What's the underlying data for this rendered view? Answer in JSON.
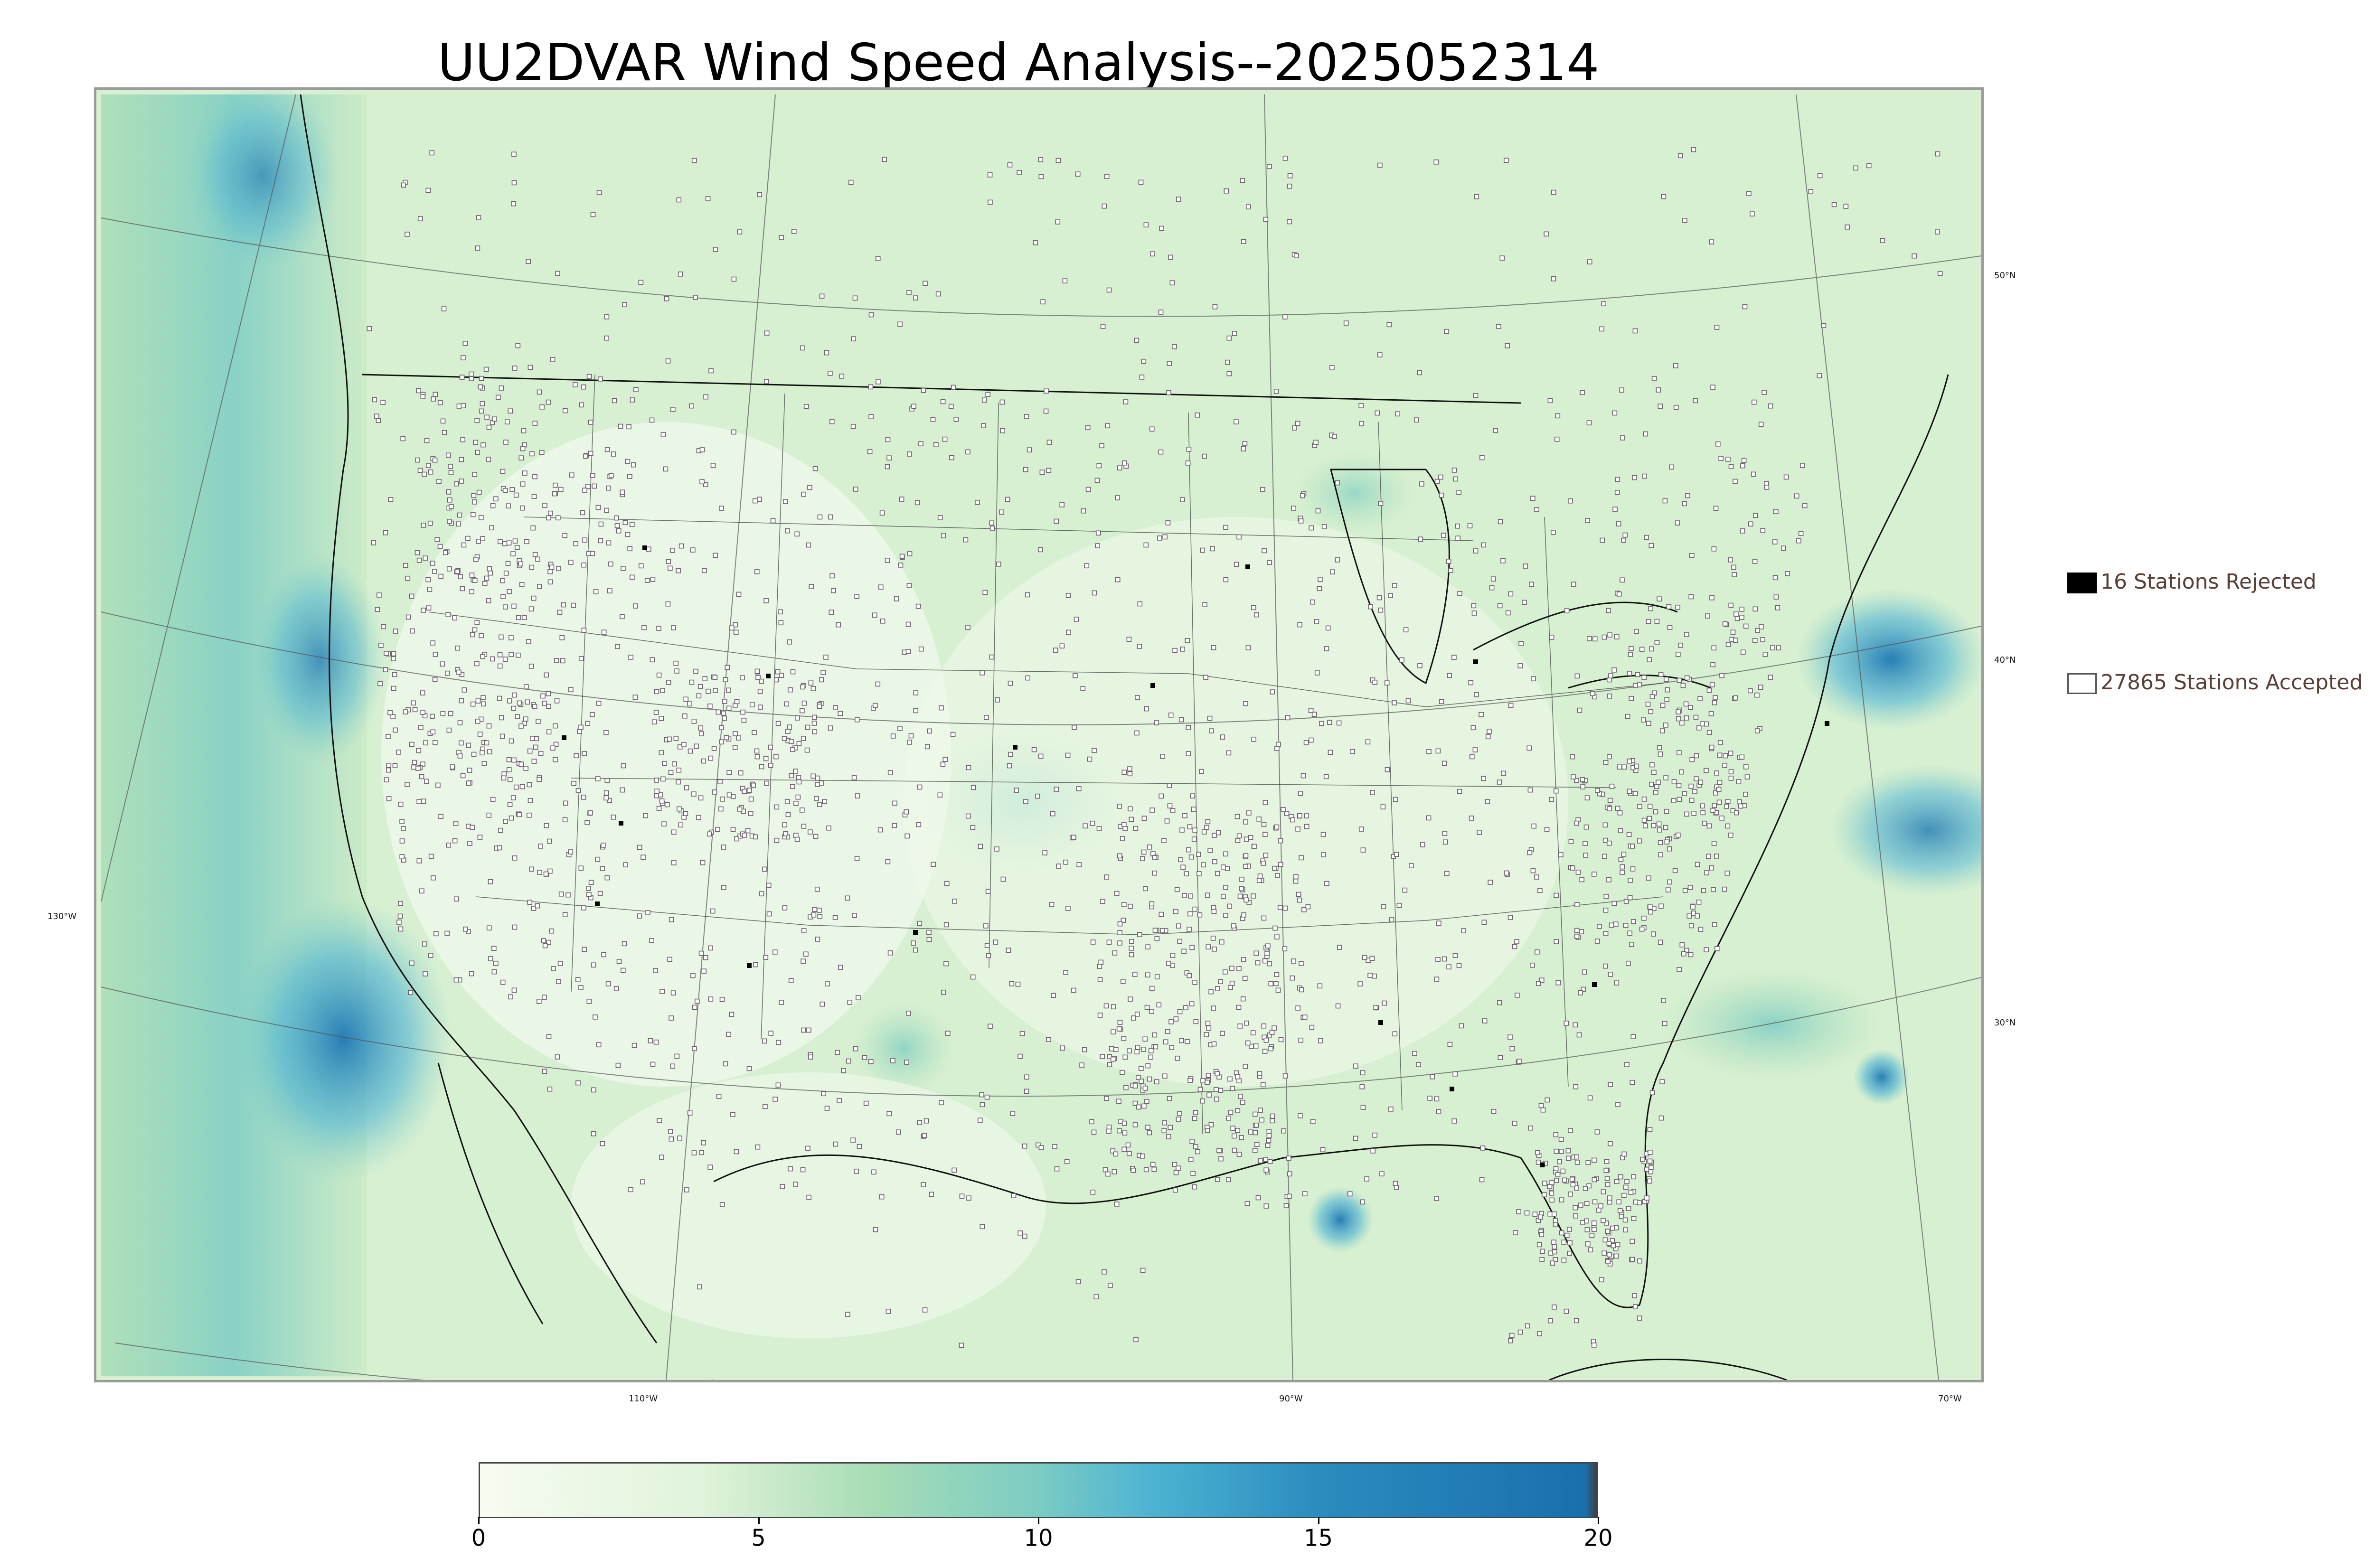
{
  "title": "UU2DVAR Wind Speed Analysis--2025052314",
  "map": {
    "latitude_labels": [
      "50°N",
      "40°N",
      "30°N"
    ],
    "longitude_labels": [
      "130°W",
      "110°W",
      "90°W",
      "70°W"
    ]
  },
  "legend": [
    {
      "label": "16 Stations Rejected",
      "fill": "#000000"
    },
    {
      "label": "27865 Stations Accepted",
      "fill": "#ffffff"
    }
  ],
  "colorbar": {
    "ticks": [
      "0",
      "5",
      "10",
      "15",
      "20"
    ],
    "tick_values": [
      0,
      5,
      10,
      15,
      20
    ],
    "range": [
      0,
      20
    ],
    "color_stops": [
      {
        "value": 0,
        "color": "#f7fcf0"
      },
      {
        "value": 4,
        "color": "#e0f3db"
      },
      {
        "value": 7,
        "color": "#a8ddb5"
      },
      {
        "value": 10,
        "color": "#7bccc4"
      },
      {
        "value": 12,
        "color": "#4eb3d3"
      },
      {
        "value": 15,
        "color": "#2b8cbe"
      },
      {
        "value": 19.8,
        "color": "#1a6fae"
      },
      {
        "value": 20,
        "color": "#3a3f47"
      }
    ]
  }
}
